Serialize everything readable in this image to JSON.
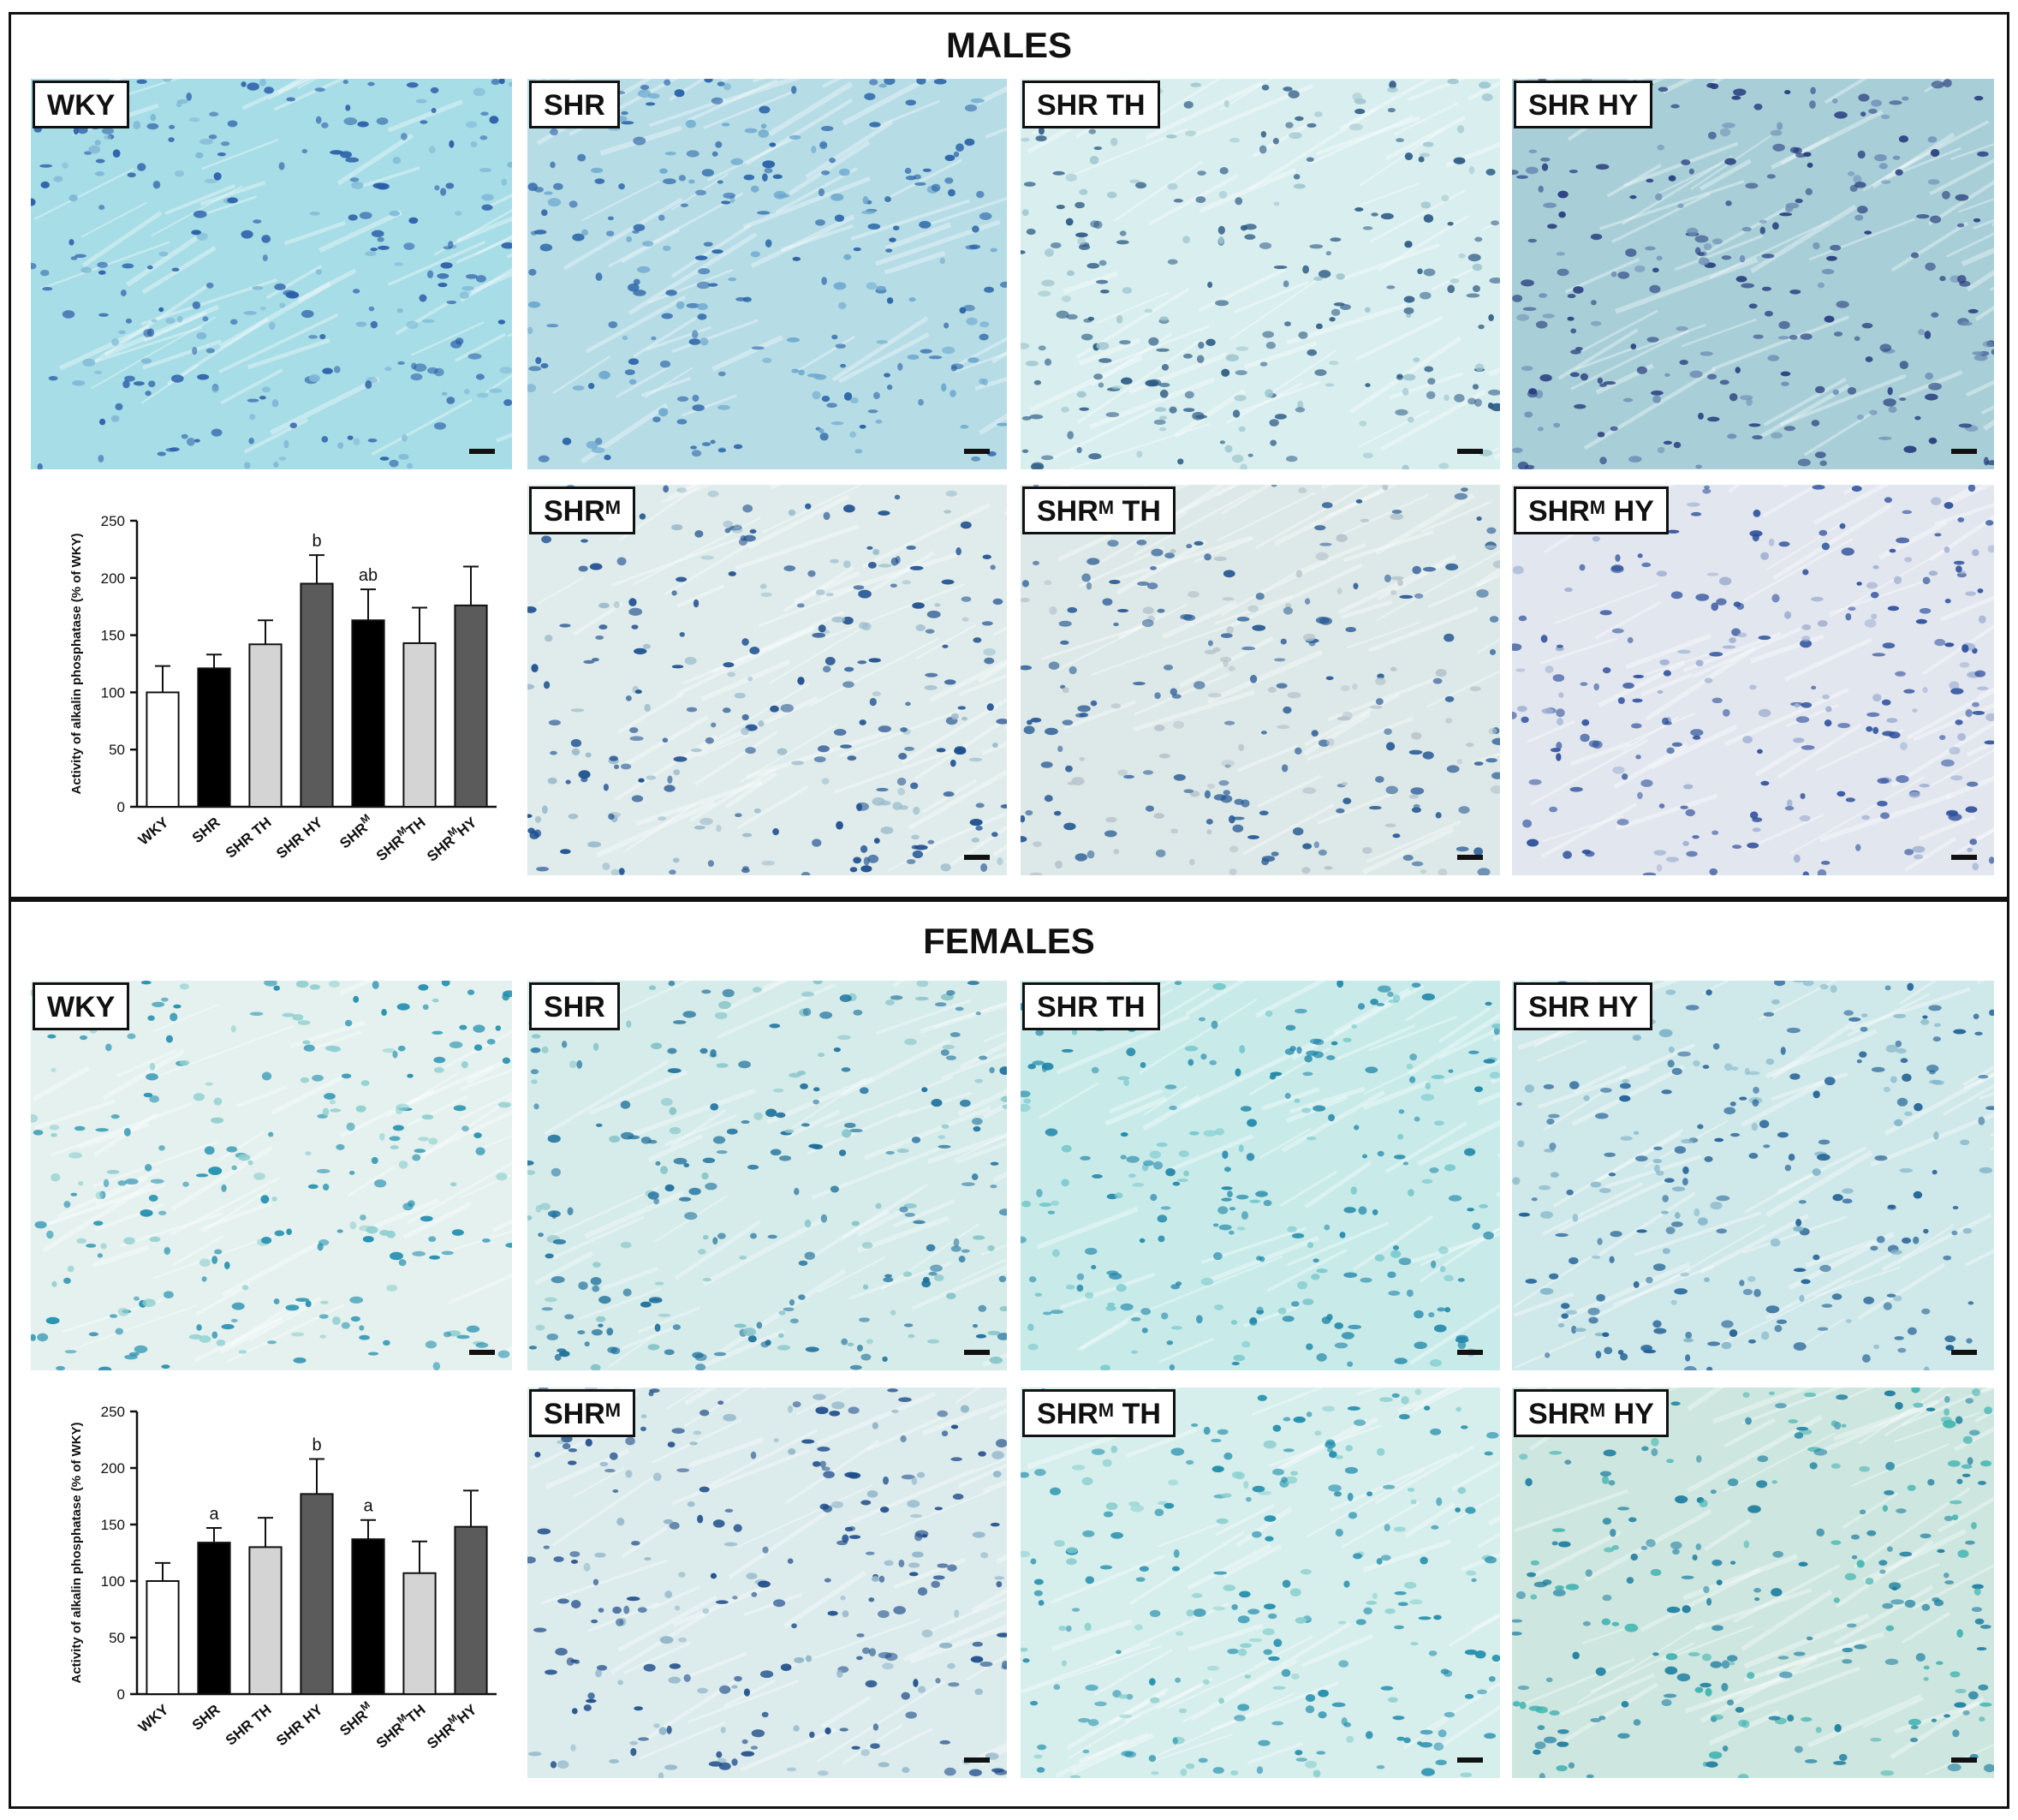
{
  "figure": {
    "sections": [
      {
        "title": "MALES",
        "images": [
          {
            "name": "WKY",
            "sup": "",
            "rest": "",
            "base": "#a6dde6",
            "dot": "#2a5ca8",
            "dot2": "#7fb6d6"
          },
          {
            "name": "SHR",
            "sup": "",
            "rest": "",
            "base": "#b6dce6",
            "dot": "#2560a6",
            "dot2": "#6da9cf"
          },
          {
            "name": "SHR TH",
            "sup": "",
            "rest": "",
            "base": "#d9eeef",
            "dot": "#2c5b84",
            "dot2": "#9fc6cf"
          },
          {
            "name": "SHR HY",
            "sup": "",
            "rest": "",
            "base": "#a8cfd8",
            "dot": "#283d7e",
            "dot2": "#6f8fb6"
          },
          {
            "name": "SHR",
            "sup": "M",
            "rest": "",
            "base": "#dfeceb",
            "dot": "#1c4d8e",
            "dot2": "#9cbccc"
          },
          {
            "name": "SHR",
            "sup": "M",
            "rest": " TH",
            "base": "#dde9e8",
            "dot": "#275a94",
            "dot2": "#b6c4cc"
          },
          {
            "name": "SHR",
            "sup": "M",
            "rest": " HY",
            "base": "#e2e6ee",
            "dot": "#2c4f9c",
            "dot2": "#9fb0d2"
          }
        ]
      },
      {
        "title": "FEMALES",
        "images": [
          {
            "name": "WKY",
            "sup": "",
            "rest": "",
            "base": "#e4f1ee",
            "dot": "#1f8eae",
            "dot2": "#8fcfd0"
          },
          {
            "name": "SHR",
            "sup": "",
            "rest": "",
            "base": "#d5ecea",
            "dot": "#1d6f9c",
            "dot2": "#83c3c8"
          },
          {
            "name": "SHR TH",
            "sup": "",
            "rest": "",
            "base": "#c8ebea",
            "dot": "#1f85a8",
            "dot2": "#78c8cc"
          },
          {
            "name": "SHR HY",
            "sup": "",
            "rest": "",
            "base": "#cfe8ea",
            "dot": "#1e5e94",
            "dot2": "#82b5c9"
          },
          {
            "name": "SHR",
            "sup": "M",
            "rest": "",
            "base": "#dcebec",
            "dot": "#1d4c8a",
            "dot2": "#8fb5c9"
          },
          {
            "name": "SHR",
            "sup": "M",
            "rest": " TH",
            "base": "#d6eeec",
            "dot": "#1f8dac",
            "dot2": "#8ad0cf"
          },
          {
            "name": "SHR",
            "sup": "M",
            "rest": " HY",
            "base": "#cde6df",
            "dot": "#1b7da0",
            "dot2": "#3fb3b0"
          }
        ]
      }
    ]
  },
  "chart_data": [
    {
      "type": "bar",
      "ylabel": "Activity of alkalin phosphatase (% of WKY)",
      "ylim": [
        0,
        250
      ],
      "yticks": [
        0,
        50,
        100,
        150,
        200,
        250
      ],
      "categories": [
        {
          "main": "WKY",
          "sup": "",
          "rest": ""
        },
        {
          "main": "SHR",
          "sup": "",
          "rest": ""
        },
        {
          "main": "SHR TH",
          "sup": "",
          "rest": ""
        },
        {
          "main": "SHR HY",
          "sup": "",
          "rest": ""
        },
        {
          "main": "SHR",
          "sup": "M",
          "rest": ""
        },
        {
          "main": "SHR",
          "sup": "M",
          "rest": "TH"
        },
        {
          "main": "SHR",
          "sup": "M",
          "rest": "HY"
        }
      ],
      "values": [
        100,
        121,
        142,
        195,
        163,
        143,
        176
      ],
      "errors": [
        23,
        12,
        21,
        25,
        27,
        31,
        34
      ],
      "annotations": [
        "",
        "",
        "",
        "b",
        "ab",
        "",
        ""
      ],
      "colors": [
        "#ffffff",
        "#000000",
        "#d4d4d4",
        "#5b5b5b",
        "#000000",
        "#d4d4d4",
        "#5b5b5b"
      ]
    },
    {
      "type": "bar",
      "ylabel": "Activity of alkalin phosphatase (% of WKY)",
      "ylim": [
        0,
        250
      ],
      "yticks": [
        0,
        50,
        100,
        150,
        200,
        250
      ],
      "categories": [
        {
          "main": "WKY",
          "sup": "",
          "rest": ""
        },
        {
          "main": "SHR",
          "sup": "",
          "rest": ""
        },
        {
          "main": "SHR TH",
          "sup": "",
          "rest": ""
        },
        {
          "main": "SHR HY",
          "sup": "",
          "rest": ""
        },
        {
          "main": "SHR",
          "sup": "M",
          "rest": ""
        },
        {
          "main": "SHR",
          "sup": "M",
          "rest": "TH"
        },
        {
          "main": "SHR",
          "sup": "M",
          "rest": "HY"
        }
      ],
      "values": [
        100,
        134,
        130,
        177,
        137,
        107,
        148
      ],
      "errors": [
        16,
        13,
        26,
        31,
        17,
        28,
        32
      ],
      "annotations": [
        "",
        "a",
        "",
        "b",
        "a",
        "",
        ""
      ],
      "colors": [
        "#ffffff",
        "#000000",
        "#d4d4d4",
        "#5b5b5b",
        "#000000",
        "#d4d4d4",
        "#5b5b5b"
      ]
    }
  ]
}
